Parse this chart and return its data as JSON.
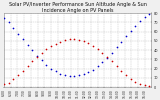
{
  "title": "Solar PV/Inverter Performance Sun Altitude Angle & Sun Incidence Angle on PV Panels",
  "ylim": [
    0,
    80
  ],
  "xlim": [
    0,
    22
  ],
  "background": "#f0f0f0",
  "plot_bg": "#ffffff",
  "grid_color": "#aaaaaa",
  "blue_x": [
    0.0,
    0.7,
    1.4,
    2.1,
    2.8,
    3.5,
    4.2,
    4.9,
    5.6,
    6.3,
    7.0,
    7.7,
    8.4,
    9.1,
    9.8,
    10.5,
    11.2,
    11.9,
    12.6,
    13.3,
    14.0,
    14.7,
    15.4,
    16.1,
    16.8,
    17.5,
    18.2,
    18.9,
    19.6,
    20.3,
    21.0,
    21.7
  ],
  "blue_y": [
    75,
    70,
    64,
    58,
    52,
    46,
    40,
    34,
    29,
    24,
    20,
    17,
    14,
    13,
    12,
    12,
    13,
    14,
    16,
    19,
    23,
    27,
    32,
    37,
    43,
    49,
    55,
    61,
    66,
    71,
    76,
    79
  ],
  "red_x": [
    0.0,
    0.7,
    1.4,
    2.1,
    2.8,
    3.5,
    4.2,
    4.9,
    5.6,
    6.3,
    7.0,
    7.7,
    8.4,
    9.1,
    9.8,
    10.5,
    11.2,
    11.9,
    12.6,
    13.3,
    14.0,
    14.7,
    15.4,
    16.1,
    16.8,
    17.5,
    18.2,
    18.9,
    19.6,
    20.3,
    21.0,
    21.7
  ],
  "red_y": [
    3,
    5,
    9,
    13,
    18,
    23,
    28,
    33,
    37,
    41,
    44,
    47,
    49,
    51,
    52,
    52,
    51,
    50,
    48,
    45,
    41,
    37,
    33,
    28,
    23,
    18,
    13,
    9,
    6,
    3,
    2,
    1
  ],
  "blue_color": "#0000cc",
  "red_color": "#cc0000",
  "marker_size": 1.5,
  "title_fontsize": 3.5,
  "tick_fontsize": 2.5,
  "yticks": [
    0,
    10,
    20,
    30,
    40,
    50,
    60,
    70,
    80
  ],
  "xtick_labels": [
    "6:00",
    "6:30",
    "7:00",
    "7:30",
    "8:00",
    "8:30",
    "9:00",
    "9:30",
    "10:00",
    "10:30",
    "11:00",
    "11:30",
    "12:00",
    "12:30",
    "13:00",
    "13:30",
    "14:00",
    "14:30",
    "15:00",
    "15:30",
    "16:00",
    "16:30"
  ],
  "xtick_positions": [
    0,
    1,
    2,
    3,
    4,
    5,
    6,
    7,
    8,
    9,
    10,
    11,
    12,
    13,
    14,
    15,
    16,
    17,
    18,
    19,
    20,
    21
  ]
}
